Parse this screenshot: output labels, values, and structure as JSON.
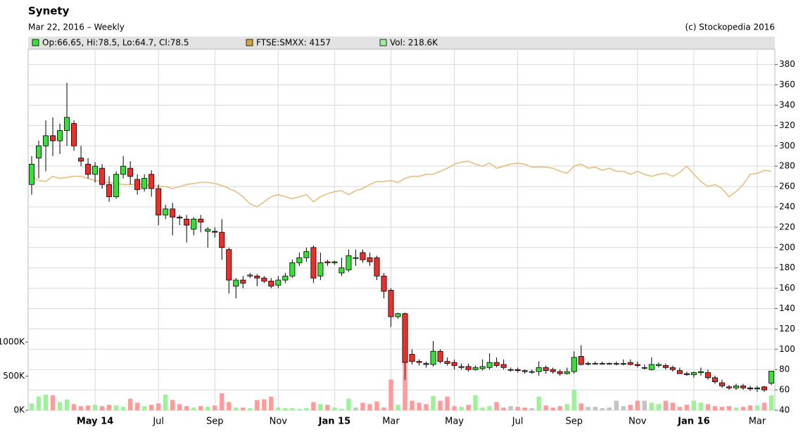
{
  "chart_data": {
    "type": "candlestick",
    "title": "Synety",
    "subtitle": "Mar 22, 2016 – Weekly",
    "copyright": "(c) Stockopedia 2016",
    "legend": [
      {
        "label": "Op:66.65, Hi:78.5, Lo:64.7, Cl:78.5",
        "color": "#3cdc3c"
      },
      {
        "label": "FTSE:SMXX: 4157",
        "color": "#d9a441"
      },
      {
        "label": "Vol: 218.6K",
        "color": "#9ef09a"
      }
    ],
    "up_color": "#3cdc3c",
    "down_color": "#e8302c",
    "vol_up_color": "#9ef09a",
    "vol_down_color": "#ff9b9b",
    "vol_flat_color": "#c4c4c4",
    "index_color": "#e6be82",
    "grid": true,
    "categories": [
      null,
      null,
      null,
      null,
      null,
      null,
      null,
      null,
      null,
      "May 14",
      null,
      null,
      null,
      null,
      null,
      null,
      null,
      null,
      "Jul",
      null,
      null,
      null,
      null,
      null,
      null,
      null,
      "Sep",
      null,
      null,
      null,
      null,
      null,
      null,
      null,
      null,
      "Nov",
      null,
      null,
      null,
      null,
      null,
      null,
      null,
      "Jan 15",
      null,
      null,
      null,
      null,
      null,
      null,
      null,
      "Mar",
      null,
      null,
      null,
      null,
      null,
      null,
      null,
      null,
      "May",
      null,
      null,
      null,
      null,
      null,
      null,
      null,
      null,
      "Jul",
      null,
      null,
      null,
      null,
      null,
      null,
      null,
      "Sep",
      null,
      null,
      null,
      null,
      null,
      null,
      null,
      null,
      "Nov",
      null,
      null,
      null,
      null,
      null,
      null,
      null,
      "Jan 16",
      null,
      null,
      null,
      null,
      null,
      null,
      null,
      null,
      "Mar",
      null,
      null
    ],
    "open": [
      262,
      288,
      300,
      310,
      305,
      315,
      322,
      288,
      282,
      272,
      278,
      262,
      250,
      272,
      278,
      267,
      258,
      272,
      258,
      232,
      238,
      230,
      228,
      218,
      228,
      216,
      216,
      215,
      198,
      162,
      168,
      172,
      172,
      170,
      167,
      163,
      168,
      172,
      185,
      190,
      200,
      172,
      186,
      185,
      175,
      178,
      190,
      195,
      190,
      190,
      172,
      158,
      132,
      135,
      95,
      88,
      86,
      85,
      98,
      88,
      87,
      82,
      83,
      80,
      81,
      82,
      87,
      85,
      80,
      80,
      79,
      78,
      78,
      82,
      80,
      78,
      76,
      78,
      93,
      86,
      86,
      86,
      86,
      86,
      86,
      87,
      85,
      82,
      80,
      84,
      84,
      82,
      79,
      76,
      75,
      77,
      77,
      72,
      67,
      63,
      62,
      64,
      62,
      61,
      63,
      66.65
    ],
    "high": [
      290,
      305,
      325,
      328,
      322,
      362,
      325,
      300,
      288,
      284,
      282,
      270,
      275,
      290,
      285,
      272,
      272,
      276,
      262,
      242,
      244,
      232,
      232,
      230,
      232,
      220,
      220,
      228,
      200,
      170,
      172,
      175,
      174,
      172,
      170,
      172,
      175,
      188,
      195,
      200,
      202,
      195,
      188,
      187,
      190,
      198,
      198,
      198,
      195,
      192,
      175,
      160,
      136,
      136,
      100,
      90,
      88,
      108,
      100,
      92,
      90,
      86,
      86,
      84,
      90,
      96,
      92,
      90,
      82,
      82,
      80,
      80,
      88,
      84,
      82,
      80,
      82,
      98,
      104,
      88,
      88,
      88,
      87,
      88,
      90,
      90,
      88,
      85,
      92,
      87,
      86,
      84,
      82,
      78,
      78,
      82,
      80,
      74,
      70,
      65,
      66,
      66,
      64,
      64,
      64,
      78.5
    ],
    "low": [
      252,
      268,
      275,
      290,
      292,
      300,
      295,
      280,
      268,
      264,
      258,
      245,
      248,
      268,
      262,
      252,
      255,
      250,
      222,
      228,
      212,
      222,
      205,
      212,
      215,
      200,
      210,
      188,
      155,
      150,
      160,
      170,
      162,
      165,
      160,
      160,
      165,
      170,
      182,
      186,
      165,
      168,
      182,
      183,
      172,
      176,
      182,
      185,
      182,
      168,
      150,
      122,
      130,
      70,
      85,
      84,
      82,
      83,
      86,
      84,
      80,
      80,
      78,
      79,
      79,
      80,
      82,
      80,
      78,
      77,
      76,
      76,
      74,
      76,
      76,
      74,
      75,
      76,
      84,
      84,
      85,
      85,
      85,
      84,
      84,
      84,
      82,
      80,
      79,
      82,
      80,
      78,
      76,
      74,
      72,
      74,
      70,
      66,
      62,
      60,
      60,
      60,
      59,
      58,
      58,
      64.7
    ],
    "close": [
      282,
      300,
      310,
      305,
      315,
      328,
      300,
      285,
      272,
      280,
      262,
      250,
      272,
      280,
      270,
      257,
      268,
      258,
      232,
      238,
      230,
      229,
      222,
      228,
      225,
      218,
      215,
      200,
      168,
      168,
      165,
      173,
      170,
      167,
      162,
      168,
      172,
      185,
      190,
      196,
      170,
      185,
      185,
      186,
      180,
      192,
      190,
      188,
      186,
      172,
      157,
      132,
      135,
      87,
      88,
      87,
      85,
      98,
      88,
      86,
      84,
      83,
      80,
      82,
      83,
      87,
      84,
      82,
      80,
      79,
      78,
      78,
      82,
      79,
      78,
      76,
      78,
      92,
      85,
      86,
      86,
      86,
      86,
      86,
      86,
      85,
      84,
      82,
      85,
      85,
      82,
      80,
      76,
      75,
      77,
      78,
      72,
      68,
      64,
      62,
      64,
      62,
      61,
      62,
      60,
      78.5
    ],
    "ylim": [
      40,
      395
    ],
    "yticks": [
      40,
      60,
      80,
      100,
      120,
      140,
      160,
      180,
      200,
      220,
      240,
      260,
      280,
      300,
      320,
      340,
      360,
      380
    ],
    "index": {
      "values": [
        270,
        266,
        265,
        270,
        268,
        269,
        270,
        270,
        268,
        266,
        265,
        264,
        263,
        262,
        262,
        262,
        262,
        261,
        260,
        260,
        258,
        260,
        262,
        263,
        264,
        264,
        263,
        261,
        258,
        255,
        250,
        243,
        240,
        245,
        250,
        252,
        250,
        248,
        250,
        252,
        245,
        250,
        253,
        255,
        256,
        252,
        256,
        258,
        262,
        265,
        265,
        266,
        264,
        268,
        270,
        270,
        272,
        272,
        275,
        278,
        282,
        284,
        285,
        282,
        280,
        283,
        278,
        280,
        282,
        283,
        282,
        279,
        279,
        279,
        278,
        275,
        273,
        280,
        282,
        278,
        279,
        276,
        278,
        275,
        275,
        272,
        275,
        272,
        270,
        272,
        273,
        270,
        274,
        280,
        272,
        265,
        260,
        262,
        258,
        250,
        255,
        262,
        272,
        273,
        276,
        275
      ]
    },
    "volume": {
      "values": [
        100000,
        200000,
        230000,
        220000,
        120000,
        160000,
        90000,
        60000,
        70000,
        80000,
        60000,
        80000,
        70000,
        50000,
        170000,
        110000,
        60000,
        80000,
        100000,
        230000,
        150000,
        90000,
        60000,
        40000,
        60000,
        50000,
        70000,
        250000,
        120000,
        40000,
        40000,
        30000,
        150000,
        160000,
        200000,
        40000,
        30000,
        30000,
        20000,
        30000,
        120000,
        90000,
        80000,
        40000,
        20000,
        170000,
        40000,
        110000,
        90000,
        130000,
        40000,
        450000,
        80000,
        990000,
        140000,
        110000,
        90000,
        210000,
        140000,
        200000,
        60000,
        50000,
        80000,
        220000,
        40000,
        60000,
        120000,
        40000,
        60000,
        50000,
        40000,
        30000,
        200000,
        70000,
        40000,
        60000,
        90000,
        300000,
        100000,
        50000,
        50000,
        30000,
        40000,
        140000,
        60000,
        80000,
        140000,
        140000,
        110000,
        90000,
        140000,
        110000,
        50000,
        80000,
        140000,
        110000,
        90000,
        60000,
        50000,
        60000,
        40000,
        50000,
        70000,
        70000,
        110000,
        218600
      ]
    },
    "y2lim": [
      0,
      5290000
    ],
    "y2ticks": [
      {
        "value": 0,
        "label": "0K"
      },
      {
        "value": 500000,
        "label": "500K"
      },
      {
        "value": 1000000,
        "label": "1000K"
      }
    ]
  }
}
